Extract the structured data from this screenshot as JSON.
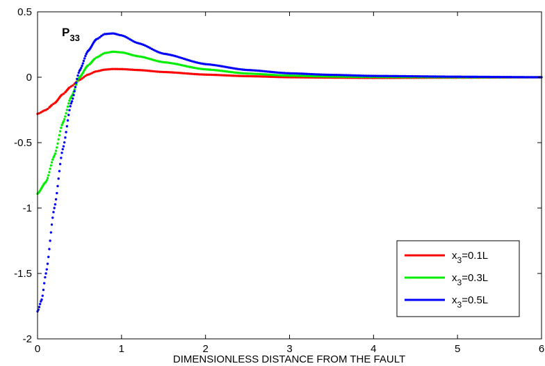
{
  "chart_data": {
    "type": "scatter",
    "xlabel": "DIMENSIONLESS DISTANCE FROM THE FAULT",
    "ylabel": "",
    "xlim": [
      0,
      6
    ],
    "ylim": [
      -2,
      0.5
    ],
    "xticks": [
      0,
      1,
      2,
      3,
      4,
      5,
      6
    ],
    "yticks": [
      0.5,
      0,
      -0.5,
      -1,
      -1.5,
      -2
    ],
    "xtick_labels": [
      "0",
      "1",
      "2",
      "3",
      "4",
      "5",
      "6"
    ],
    "ytick_labels": [
      "0.5",
      "0",
      "-0.5",
      "-1",
      "-1.5",
      "-2"
    ],
    "grid": false,
    "legend_position": "bottom-right",
    "annotation": {
      "text": "P",
      "subscript": "33",
      "x": 0.3,
      "y": 0.33
    },
    "series": [
      {
        "name_main": "x",
        "name_sub": "3",
        "name_rest": "=0.1L",
        "color": "#ff0000",
        "points": [
          [
            0,
            -0.28
          ],
          [
            0.1,
            -0.25
          ],
          [
            0.2,
            -0.2
          ],
          [
            0.3,
            -0.13
          ],
          [
            0.4,
            -0.07
          ],
          [
            0.5,
            -0.02
          ],
          [
            0.6,
            0.02
          ],
          [
            0.7,
            0.045
          ],
          [
            0.8,
            0.058
          ],
          [
            0.9,
            0.063
          ],
          [
            1.0,
            0.062
          ],
          [
            1.2,
            0.055
          ],
          [
            1.5,
            0.04
          ],
          [
            2.0,
            0.02
          ],
          [
            2.5,
            0.008
          ],
          [
            3.0,
            0.0
          ],
          [
            3.5,
            -0.003
          ],
          [
            4.0,
            -0.005
          ],
          [
            5.0,
            -0.003
          ],
          [
            6.0,
            0.0
          ]
        ]
      },
      {
        "name_main": "x",
        "name_sub": "3",
        "name_rest": "=0.3L",
        "color": "#00ee00",
        "points": [
          [
            0,
            -0.89
          ],
          [
            0.1,
            -0.8
          ],
          [
            0.2,
            -0.6
          ],
          [
            0.3,
            -0.35
          ],
          [
            0.4,
            -0.15
          ],
          [
            0.5,
            0.0
          ],
          [
            0.6,
            0.09
          ],
          [
            0.7,
            0.15
          ],
          [
            0.8,
            0.185
          ],
          [
            0.9,
            0.195
          ],
          [
            1.0,
            0.19
          ],
          [
            1.2,
            0.16
          ],
          [
            1.5,
            0.115
          ],
          [
            2.0,
            0.06
          ],
          [
            2.5,
            0.028
          ],
          [
            3.0,
            0.012
          ],
          [
            3.5,
            0.005
          ],
          [
            4.0,
            0.002
          ],
          [
            5.0,
            0.0
          ],
          [
            6.0,
            0.0
          ]
        ]
      },
      {
        "name_main": "x",
        "name_sub": "3",
        "name_rest": "=0.5L",
        "color": "#0000ff",
        "points": [
          [
            0,
            -1.79
          ],
          [
            0.05,
            -1.7
          ],
          [
            0.1,
            -1.5
          ],
          [
            0.2,
            -1.0
          ],
          [
            0.3,
            -0.55
          ],
          [
            0.4,
            -0.2
          ],
          [
            0.5,
            0.05
          ],
          [
            0.6,
            0.2
          ],
          [
            0.7,
            0.29
          ],
          [
            0.8,
            0.33
          ],
          [
            0.9,
            0.335
          ],
          [
            1.0,
            0.32
          ],
          [
            1.2,
            0.26
          ],
          [
            1.5,
            0.18
          ],
          [
            2.0,
            0.1
          ],
          [
            2.5,
            0.055
          ],
          [
            3.0,
            0.03
          ],
          [
            3.5,
            0.018
          ],
          [
            4.0,
            0.01
          ],
          [
            5.0,
            0.004
          ],
          [
            6.0,
            0.0
          ]
        ]
      }
    ]
  }
}
